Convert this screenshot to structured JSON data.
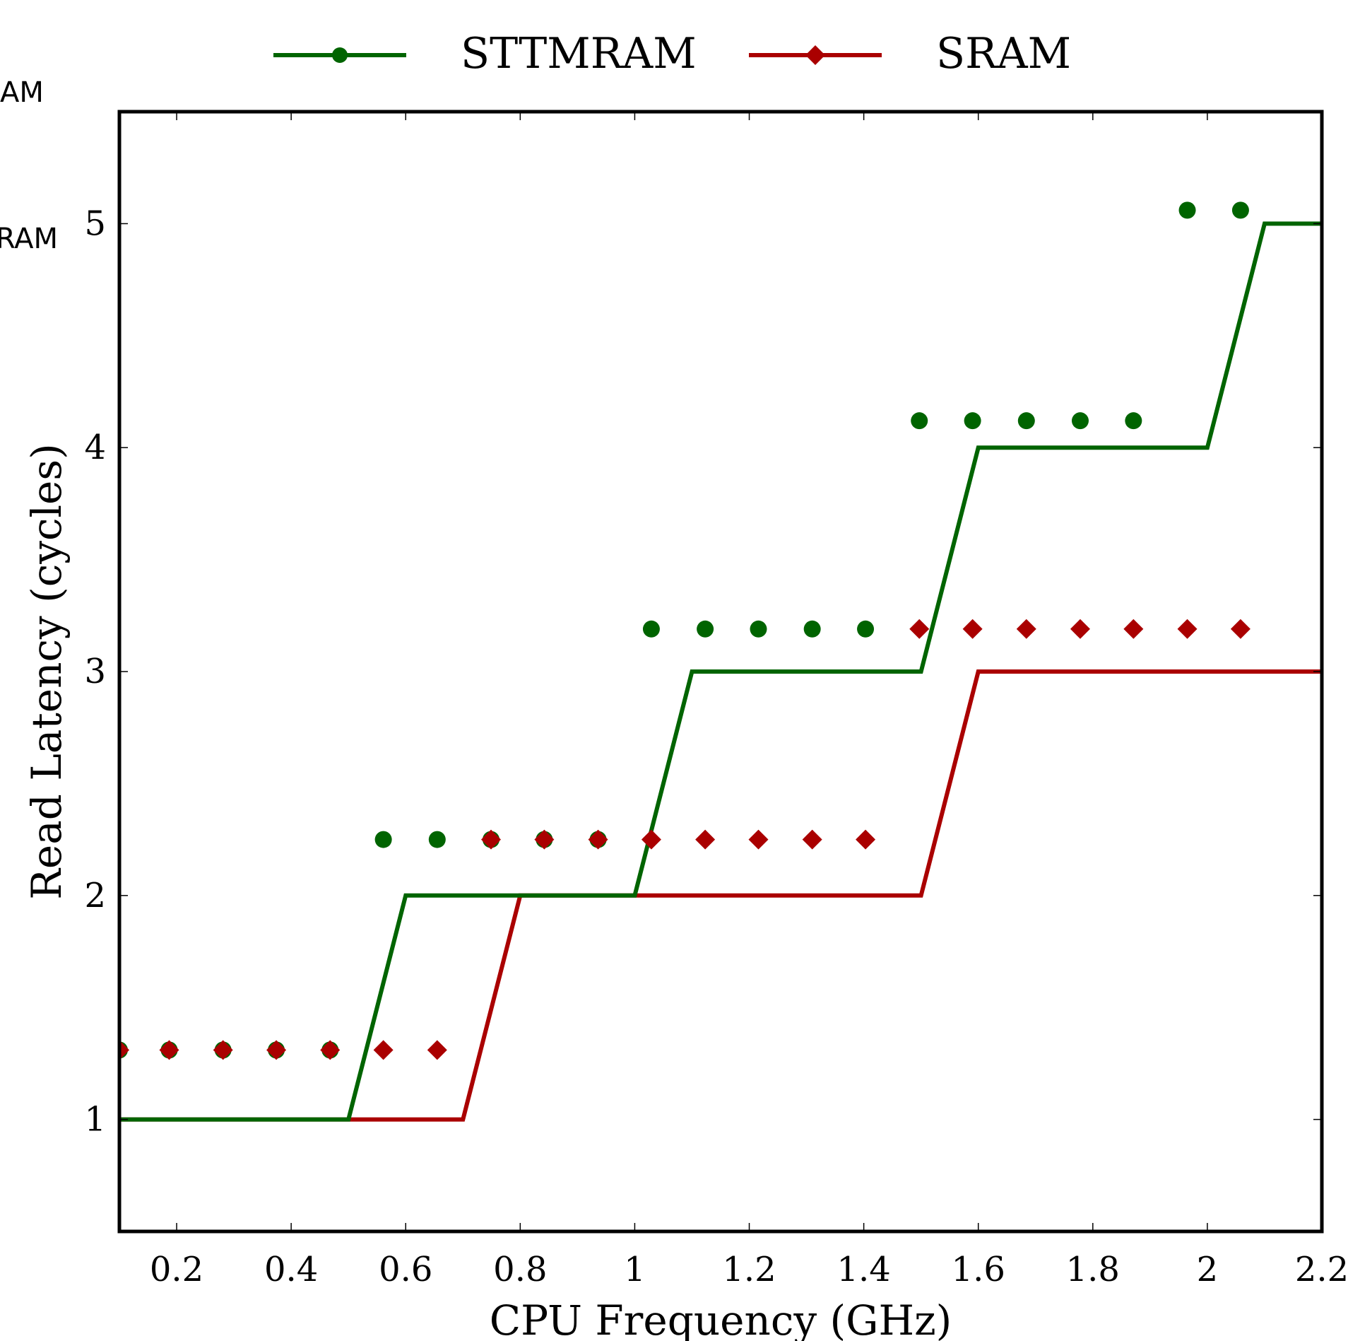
{
  "chart_data": {
    "type": "line",
    "title": "",
    "xlabel": "CPU Frequency (GHz)",
    "ylabel": "Read Latency (cycles)",
    "xlim": [
      0.1,
      2.2
    ],
    "ylim": [
      0.5,
      5.5
    ],
    "x_ticks": [
      0.2,
      0.4,
      0.6,
      0.8,
      1.0,
      1.2,
      1.4,
      1.6,
      1.8,
      2.0,
      2.2
    ],
    "x_tick_labels": [
      "0.2",
      "0.4",
      "0.6",
      "0.8",
      "1",
      "1.2",
      "1.4",
      "1.6",
      "1.8",
      "2",
      "2.2"
    ],
    "y_ticks": [
      1,
      2,
      3,
      4,
      5
    ],
    "y_tick_labels": [
      "1",
      "2",
      "3",
      "4",
      "5"
    ],
    "grid": false,
    "legend_position": "top-center, above plot",
    "clipped_left_text": [
      "AM",
      "RAM"
    ],
    "series": [
      {
        "name": "STTMRAM",
        "color": "#006400",
        "marker": "circle",
        "line_x": [
          0.1,
          0.5,
          0.6,
          1.0,
          1.1,
          1.5,
          1.6,
          2.0,
          2.1,
          2.2
        ],
        "line_y": [
          1,
          1,
          2,
          2,
          3,
          3,
          4,
          4,
          5,
          5
        ],
        "marker_x": [
          0.1,
          0.187,
          0.281,
          0.374,
          0.468,
          0.561,
          0.655,
          0.749,
          0.842,
          0.936,
          1.029,
          1.123,
          1.216,
          1.31,
          1.403,
          1.497,
          1.59,
          1.684,
          1.778,
          1.871,
          1.965,
          2.058
        ],
        "marker_y": [
          1.31,
          1.31,
          1.31,
          1.31,
          1.31,
          2.25,
          2.25,
          2.25,
          2.25,
          2.25,
          3.19,
          3.19,
          3.19,
          3.19,
          3.19,
          4.12,
          4.12,
          4.12,
          4.12,
          4.12,
          5.06,
          5.06
        ]
      },
      {
        "name": "SRAM",
        "color": "#aa0000",
        "marker": "diamond",
        "line_x": [
          0.1,
          0.7,
          0.8,
          1.5,
          1.6,
          2.2
        ],
        "line_y": [
          1,
          1,
          2,
          2,
          3,
          3
        ],
        "marker_x": [
          0.1,
          0.187,
          0.281,
          0.374,
          0.468,
          0.561,
          0.655,
          0.749,
          0.842,
          0.936,
          1.029,
          1.123,
          1.216,
          1.31,
          1.403,
          1.497,
          1.59,
          1.684,
          1.778,
          1.871,
          1.965,
          2.058
        ],
        "marker_y": [
          1.31,
          1.31,
          1.31,
          1.31,
          1.31,
          1.31,
          1.31,
          2.25,
          2.25,
          2.25,
          2.25,
          2.25,
          2.25,
          2.25,
          2.25,
          3.19,
          3.19,
          3.19,
          3.19,
          3.19,
          3.19,
          3.19
        ]
      }
    ]
  }
}
